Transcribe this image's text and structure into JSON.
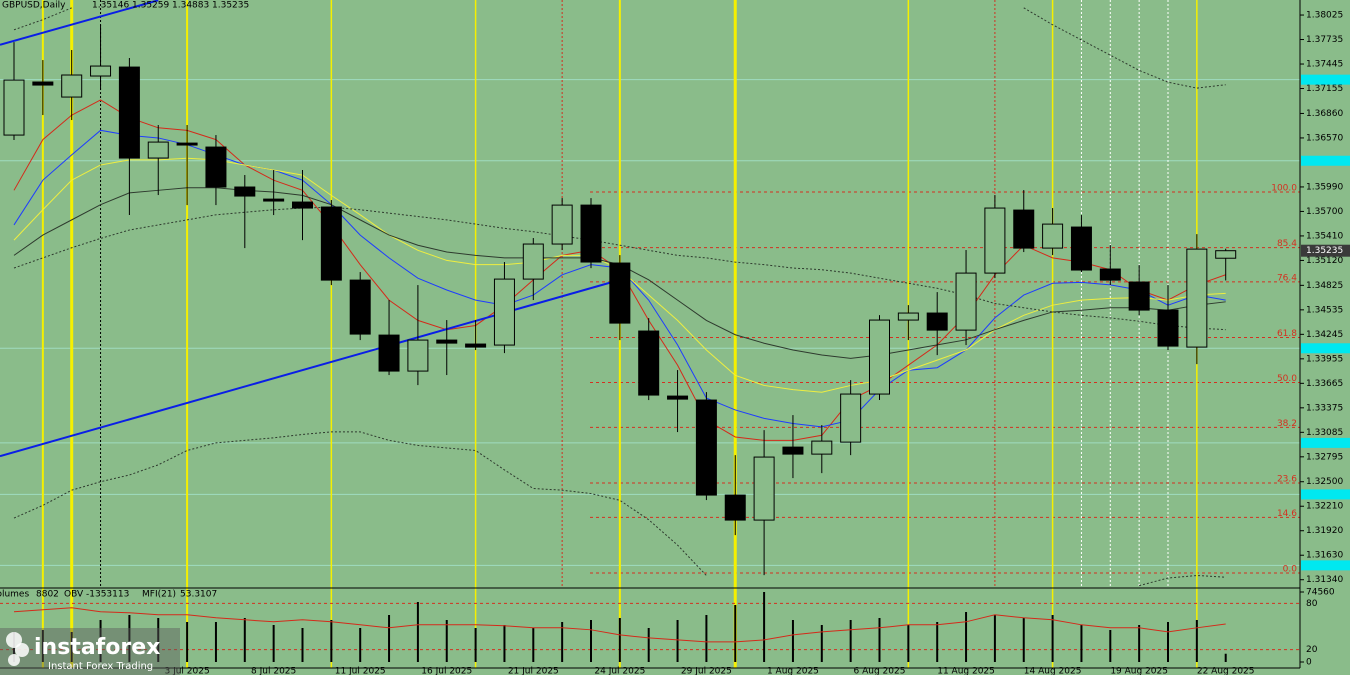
{
  "chart_data": {
    "type": "candlestick",
    "title": "GBPUSD,Daily",
    "categories": [
      null,
      null,
      null,
      null,
      null,
      null,
      "3 Jul 2025",
      null,
      null,
      "8 Jul 2025",
      null,
      null,
      "11 Jul 2025",
      null,
      null,
      "16 Jul 2025",
      null,
      null,
      "21 Jul 2025",
      null,
      null,
      "24 Jul 2025",
      null,
      null,
      "29 Jul 2025",
      null,
      null,
      "1 Aug 2025",
      null,
      null,
      "6 Aug 2025",
      null,
      null,
      "11 Aug 2025",
      null,
      null,
      "14 Aug 2025",
      null,
      null,
      "19 Aug 2025",
      null,
      null,
      "22 Aug 2025"
    ],
    "open": [
      1.36604,
      1.37232,
      1.37054,
      1.37303,
      1.37409,
      1.36332,
      1.36509,
      1.36462,
      1.35989,
      1.35846,
      1.35811,
      1.35752,
      1.34887,
      1.34236,
      1.3381,
      1.34177,
      1.3413,
      1.34118,
      1.34899,
      1.35314,
      1.35775,
      1.35089,
      1.34284,
      1.33514,
      1.33467,
      1.32342,
      1.32046,
      1.3291,
      1.32827,
      1.32969,
      1.33538,
      1.34414,
      1.34497,
      1.34295,
      1.3497,
      1.35716,
      1.35266,
      1.35515,
      1.35018,
      1.34864,
      1.34532,
      1.34094,
      1.35146
    ],
    "high": [
      1.37705,
      1.37492,
      1.37611,
      1.37907,
      1.37516,
      1.36723,
      1.36723,
      1.36604,
      1.36131,
      1.3619,
      1.3619,
      1.35835,
      1.34982,
      1.34651,
      1.34828,
      1.34414,
      1.34414,
      1.35101,
      1.35385,
      1.35858,
      1.35858,
      1.35183,
      1.34437,
      1.33822,
      1.33561,
      1.32815,
      1.33111,
      1.33289,
      1.33171,
      1.33703,
      1.34473,
      1.34591,
      1.34745,
      1.35243,
      1.35894,
      1.35953,
      1.3574,
      1.35657,
      1.35302,
      1.35065,
      1.34828,
      1.35432,
      1.35259
    ],
    "low": [
      1.36545,
      1.36841,
      1.36782,
      1.37137,
      1.35657,
      1.35894,
      1.35775,
      1.35775,
      1.35266,
      1.35657,
      1.35361,
      1.34828,
      1.34177,
      1.33763,
      1.33644,
      1.33763,
      1.34059,
      1.34023,
      1.34651,
      1.35243,
      1.35029,
      1.34177,
      1.33467,
      1.33088,
      1.32283,
      1.31868,
      1.31395,
      1.32543,
      1.32602,
      1.32815,
      1.33467,
      1.34177,
      1.33999,
      1.34118,
      1.34911,
      1.35219,
      1.35183,
      1.34982,
      1.34828,
      1.34473,
      1.34059,
      1.33893,
      1.34883
    ],
    "close": [
      1.37255,
      1.37196,
      1.37315,
      1.37421,
      1.36332,
      1.36521,
      1.36486,
      1.35989,
      1.35882,
      1.35823,
      1.3574,
      1.34887,
      1.34248,
      1.3381,
      1.34177,
      1.34141,
      1.34094,
      1.34899,
      1.35314,
      1.35775,
      1.35101,
      1.34378,
      1.33526,
      1.33478,
      1.32342,
      1.32046,
      1.32792,
      1.32827,
      1.32981,
      1.33538,
      1.34414,
      1.34497,
      1.34295,
      1.3497,
      1.3574,
      1.35266,
      1.3555,
      1.35006,
      1.34887,
      1.34532,
      1.34106,
      1.35254,
      1.35235
    ],
    "ylim": [
      1.31242,
      1.38203
    ],
    "yticks": [
      1.38025,
      1.37735,
      1.37445,
      1.37155,
      {
        "value": 1.3686,
        "label": "1.36860"
      },
      {
        "value": 1.3657,
        "label": "1.36570"
      },
      {
        "value": 1.3599,
        "label": "1.35990"
      },
      {
        "value": 1.357,
        "label": "1.35700"
      },
      {
        "value": 1.3541,
        "label": "1.35410"
      },
      {
        "value": 1.3512,
        "label": "1.35120"
      },
      1.34825,
      1.34535,
      1.34245,
      1.33955,
      1.33665,
      1.33375,
      1.33085,
      1.32795,
      {
        "value": 1.325,
        "label": "1.32500"
      },
      {
        "value": 1.3221,
        "label": "1.32210"
      },
      {
        "value": 1.3192,
        "label": "1.31920"
      },
      {
        "value": 1.3163,
        "label": "1.31630"
      },
      {
        "value": 1.3134,
        "label": "1.31340"
      }
    ],
    "overlays": [
      {
        "color": "#d42a1a",
        "style": "solid",
        "values": [
          1.3595,
          1.3655,
          1.3684,
          1.3702,
          1.3681,
          1.3669,
          1.3666,
          1.3655,
          1.3625,
          1.3607,
          1.3595,
          1.3554,
          1.3507,
          1.3465,
          1.3441,
          1.343,
          1.3435,
          1.3459,
          1.3489,
          1.3518,
          1.3524,
          1.3501,
          1.3441,
          1.3388,
          1.3323,
          1.3303,
          1.3299,
          1.3299,
          1.3305,
          1.3347,
          1.3364,
          1.3388,
          1.3412,
          1.3447,
          1.3495,
          1.353,
          1.3515,
          1.351,
          1.3501,
          1.3477,
          1.3465,
          1.3483,
          1.3495
        ]
      },
      {
        "color": "#1e3cff",
        "style": "solid",
        "values": [
          1.3554,
          1.3607,
          1.3637,
          1.3666,
          1.366,
          1.3657,
          1.3649,
          1.3637,
          1.3625,
          1.3619,
          1.3607,
          1.3578,
          1.3542,
          1.3515,
          1.3491,
          1.3477,
          1.3465,
          1.3459,
          1.3471,
          1.3495,
          1.3507,
          1.3503,
          1.3465,
          1.3412,
          1.3349,
          1.3335,
          1.3325,
          1.3319,
          1.3315,
          1.3323,
          1.3359,
          1.3382,
          1.3385,
          1.3406,
          1.3444,
          1.3471,
          1.3485,
          1.3486,
          1.3483,
          1.3477,
          1.3459,
          1.3471,
          1.3465
        ]
      },
      {
        "color": "#eeee40",
        "style": "solid",
        "values": [
          1.3536,
          1.3572,
          1.3607,
          1.3625,
          1.3631,
          1.3631,
          1.3633,
          1.3631,
          1.3625,
          1.3619,
          1.3613,
          1.3589,
          1.3566,
          1.3542,
          1.3524,
          1.3512,
          1.3507,
          1.3507,
          1.351,
          1.3518,
          1.3518,
          1.3501,
          1.3471,
          1.3441,
          1.3406,
          1.3376,
          1.3364,
          1.3359,
          1.3356,
          1.3364,
          1.337,
          1.3382,
          1.3394,
          1.3406,
          1.343,
          1.3447,
          1.3459,
          1.3465,
          1.3467,
          1.3468,
          1.3465,
          1.3471,
          1.3473
        ]
      },
      {
        "color": "#2e3a2e",
        "style": "solid",
        "values": [
          1.3518,
          1.3542,
          1.356,
          1.3578,
          1.3592,
          1.3595,
          1.3598,
          1.3598,
          1.3595,
          1.3593,
          1.3589,
          1.3578,
          1.356,
          1.3542,
          1.353,
          1.3522,
          1.3518,
          1.3515,
          1.3515,
          1.3515,
          1.3515,
          1.3507,
          1.3489,
          1.3465,
          1.3441,
          1.3424,
          1.3414,
          1.3406,
          1.34,
          1.3396,
          1.34,
          1.3406,
          1.3412,
          1.3418,
          1.343,
          1.3441,
          1.3451,
          1.3453,
          1.3456,
          1.3456,
          1.3453,
          1.3459,
          1.3463
        ]
      },
      {
        "color": "#2e3a2e",
        "style": "dotted",
        "values": [
          1.3785,
          1.3797,
          1.3811,
          null,
          null,
          null,
          null,
          null,
          null,
          null,
          null,
          null,
          null,
          null,
          null,
          null,
          null,
          null,
          null,
          null,
          null,
          null,
          null,
          null,
          null,
          null,
          null,
          null,
          null,
          null,
          null,
          null,
          null,
          null,
          null,
          1.3811,
          1.3791,
          1.3773,
          1.3755,
          1.3737,
          1.3723,
          1.3716,
          1.372
        ]
      },
      {
        "color": "#2e3a2e",
        "style": "dotted",
        "values": [
          1.3503,
          1.3515,
          1.3527,
          1.3538,
          1.3548,
          1.3554,
          1.356,
          1.3566,
          1.3569,
          1.3572,
          1.3574,
          1.3575,
          1.3572,
          1.3568,
          1.3564,
          1.356,
          1.3555,
          1.355,
          1.3546,
          1.3541,
          1.3536,
          1.353,
          1.3524,
          1.3518,
          1.3515,
          1.351,
          1.3507,
          1.3503,
          1.3501,
          1.3497,
          1.3491,
          1.3485,
          1.3479,
          1.3471,
          1.3461,
          1.3456,
          1.3451,
          1.3447,
          1.3444,
          1.344,
          1.3435,
          1.3432,
          1.343
        ]
      },
      {
        "color": "#2e3a2e",
        "style": "dotted",
        "values": [
          1.3207,
          1.3222,
          1.324,
          1.325,
          1.3258,
          1.327,
          1.3287,
          1.3296,
          1.3299,
          1.3302,
          1.3306,
          1.3309,
          1.3309,
          1.3299,
          1.3293,
          1.329,
          1.3287,
          1.3264,
          1.3242,
          1.324,
          1.3236,
          1.3228,
          1.3205,
          1.3175,
          1.3139,
          null,
          null,
          null,
          null,
          null,
          null,
          null,
          null,
          null,
          null,
          null,
          null,
          null,
          null,
          1.3127,
          1.3136,
          1.3139,
          1.3137
        ]
      }
    ],
    "trendlines": [
      {
        "color": "#0a1ee6",
        "x": [
          0,
          21
        ],
        "values": [
          1.3285,
          1.3489
        ]
      },
      {
        "color": "#0a1ee6",
        "x": [
          0,
          5
        ],
        "values": [
          1.3772,
          1.382
        ]
      }
    ],
    "levels": [
      1.3726,
      1.363,
      1.3408,
      1.3296,
      1.3235,
      1.3151
    ],
    "fibo": {
      "low": 1.3142,
      "high": 1.3593,
      "color": "#d43020",
      "levels": [
        {
          "value": 100,
          "label": "100.0"
        },
        85.4,
        76.4,
        61.8,
        {
          "value": 50,
          "label": "50.0"
        },
        38.2,
        23.6,
        14.6,
        {
          "value": 0,
          "label": "0.0"
        }
      ]
    },
    "volume_panel": {
      "volume_label": "Volumes",
      "obv_label": "OBV",
      "obv": -1353113,
      "mfi_label": "MFI(21)",
      "volumes": [
        31950,
        34080,
        31950,
        44730,
        50060,
        46860,
        42600,
        42600,
        46860,
        39410,
        36210,
        44730,
        36210,
        50060,
        63900,
        44730,
        36210,
        39410,
        36210,
        42600,
        44730,
        46860,
        36210,
        44730,
        50060,
        60710,
        74560,
        44730,
        39410,
        44730,
        46860,
        39410,
        42600,
        53250,
        50060,
        46860,
        50060,
        39410,
        34080,
        39410,
        42600,
        44730,
        8802
      ],
      "ylim": [
        0,
        74560
      ],
      "yticks": [
        74560,
        0
      ],
      "mfi": [
        69.1,
        71.7,
        74.3,
        69.1,
        67.8,
        65.2,
        65.2,
        61.3,
        58.7,
        56.1,
        58.7,
        56.1,
        52.2,
        48.3,
        52.2,
        52.2,
        52.2,
        50.9,
        48.3,
        48.3,
        45.7,
        39.1,
        35.2,
        32.6,
        30.0,
        30.0,
        32.6,
        39.1,
        43.0,
        45.7,
        48.3,
        52.2,
        52.2,
        56.1,
        65.2,
        61.3,
        58.7,
        52.2,
        48.3,
        48.3,
        43.0,
        48.3,
        53.3107
      ],
      "mfi_color": "#d42a1a",
      "mfi_ylim": [
        0,
        100
      ],
      "mfi_ticks": [
        80,
        20
      ]
    },
    "watermark": {
      "brand": "instaforex",
      "tagline": "Instant Forex Trading"
    }
  }
}
